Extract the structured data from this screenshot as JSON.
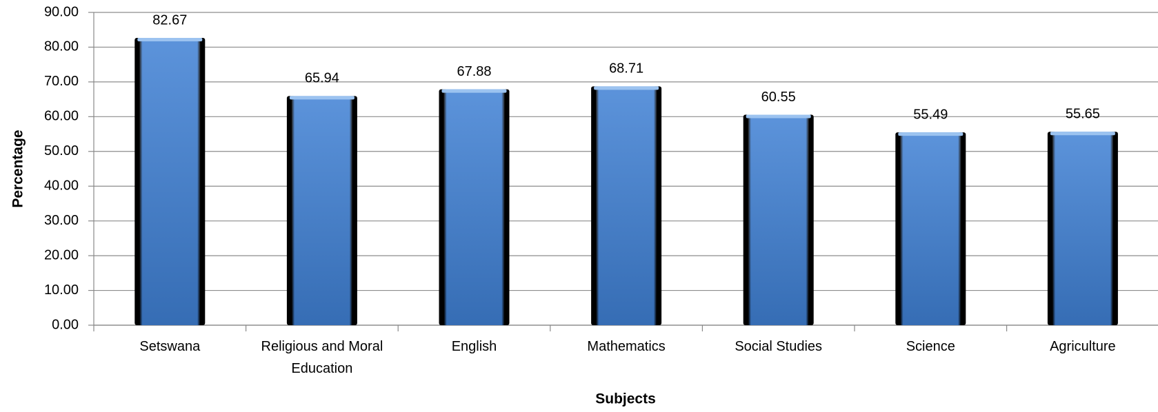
{
  "chart_data": {
    "type": "bar",
    "x_label": "Subjects",
    "y_label": "Percentage",
    "categories": [
      "Setswana",
      "Religious and Moral Education",
      "English",
      "Mathematics",
      "Social Studies",
      "Science",
      "Agriculture"
    ],
    "values": [
      82.67,
      65.94,
      67.88,
      68.71,
      60.55,
      55.49,
      55.65
    ],
    "color": "#3f80d4",
    "ylim": [
      0,
      90
    ],
    "yticks": [
      {
        "value": 0,
        "label": "0.00"
      },
      {
        "value": 10,
        "label": "10.00"
      },
      {
        "value": 20,
        "label": "20.00"
      },
      {
        "value": 30,
        "label": "30.00"
      },
      {
        "value": 40,
        "label": "40.00"
      },
      {
        "value": 50,
        "label": "50.00"
      },
      {
        "value": 60,
        "label": "60.00"
      },
      {
        "value": 70,
        "label": "70.00"
      },
      {
        "value": 80,
        "label": "80.00"
      },
      {
        "value": 90,
        "label": "90.00"
      }
    ],
    "grid": true
  }
}
